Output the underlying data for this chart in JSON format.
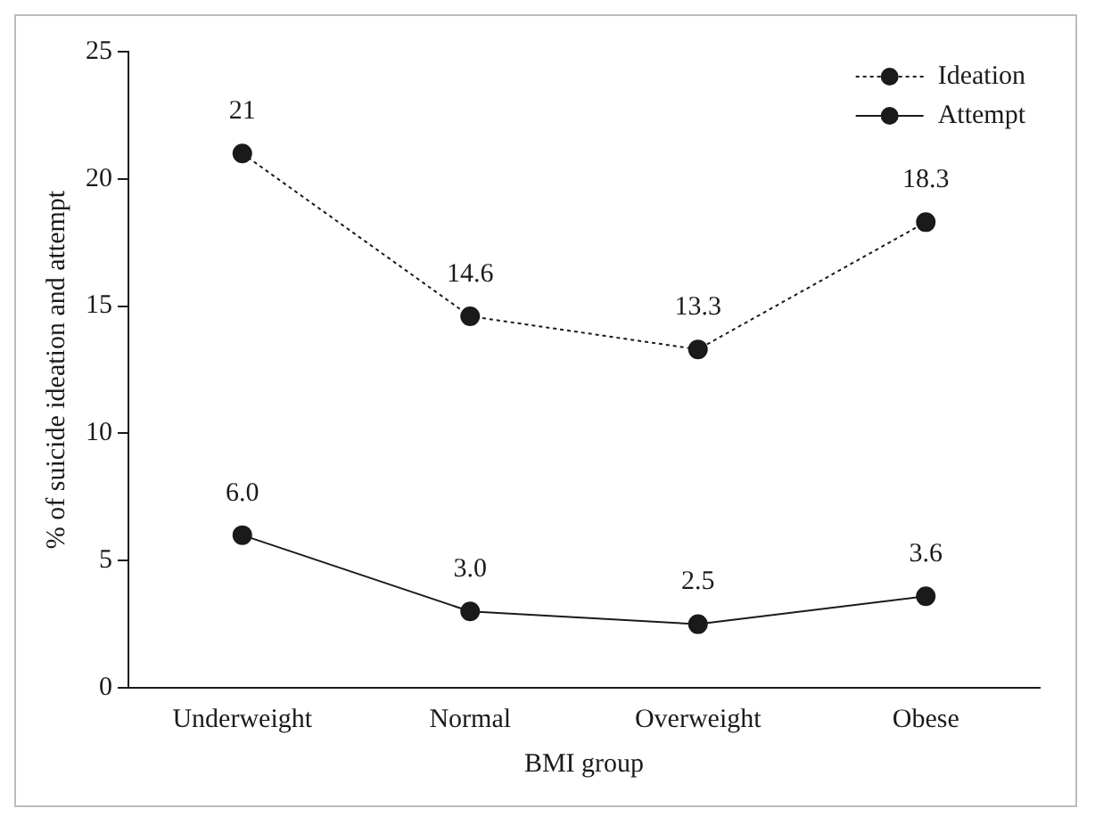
{
  "chart_data": {
    "type": "line",
    "xlabel": "BMI group",
    "ylabel": "% of suicide ideation and attempt",
    "categories": [
      "Underweight",
      "Normal",
      "Overweight",
      "Obese"
    ],
    "series": [
      {
        "name": "Ideation",
        "color": "#1a1a1a",
        "values": [
          21,
          14.6,
          13.3,
          18.3
        ],
        "value_labels": [
          "21",
          "14.6",
          "13.3",
          "18.3"
        ],
        "line_style": "dotted"
      },
      {
        "name": "Attempt",
        "color": "#1a1a1a",
        "values": [
          6.0,
          3.0,
          2.5,
          3.6
        ],
        "value_labels": [
          "6.0",
          "3.0",
          "2.5",
          "3.6"
        ],
        "line_style": "solid"
      }
    ],
    "ylim": [
      0,
      25
    ],
    "yticks": [
      0,
      5,
      10,
      15,
      20,
      25
    ],
    "grid": false,
    "legend": "top right",
    "marker": "circle"
  }
}
